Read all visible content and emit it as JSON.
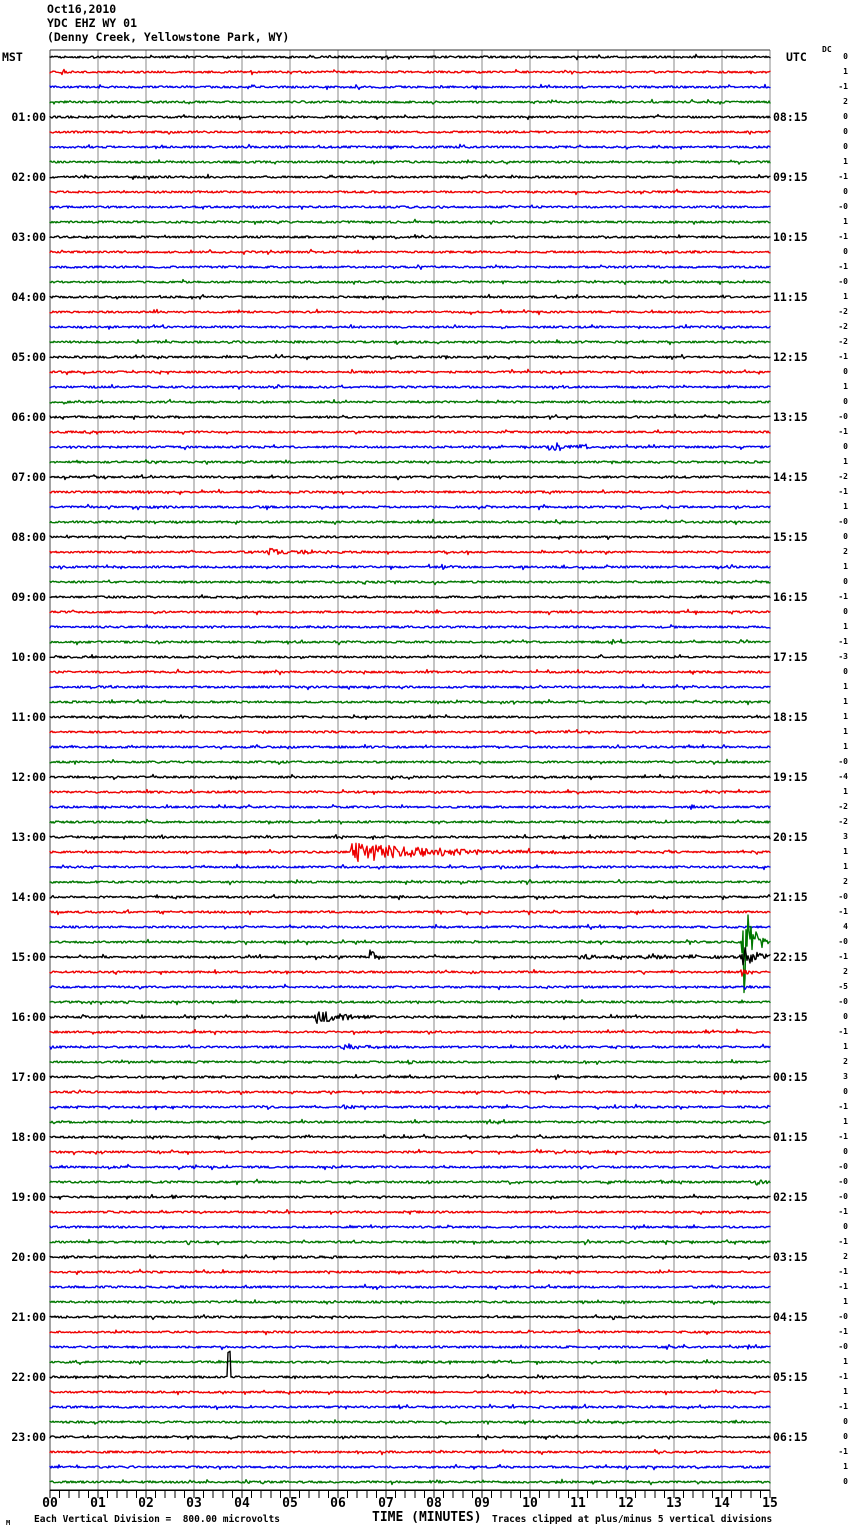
{
  "header": {
    "date": "Oct16,2010",
    "station": "YDC EHZ WY 01",
    "location": "(Denny Creek, Yellowstone Park, WY)"
  },
  "axis_headers": {
    "left": "MST",
    "right": "UTC",
    "dc": "DC"
  },
  "x_axis": {
    "label": "TIME (MINUTES)",
    "tick_labels": [
      "00",
      "01",
      "02",
      "03",
      "04",
      "05",
      "06",
      "07",
      "08",
      "09",
      "10",
      "11",
      "12",
      "13",
      "14",
      "15"
    ]
  },
  "footer": {
    "left_note": "Each Vertical Division =  800.00 microvolts",
    "right_note": "Traces clipped at plus/minus 5 vertical divisions",
    "corner_mark": "M"
  },
  "chart_data": {
    "type": "line",
    "subtype": "helicorder-seismogram",
    "title": "Oct16,2010 YDC EHZ WY 01 (Denny Creek, Yellowstone Park, WY)",
    "x_range_minutes": [
      0,
      15
    ],
    "minutes_per_row": 15,
    "rows_count": 96,
    "clip_divisions": 5,
    "microvolts_per_division": 800.0,
    "trace_color_cycle": [
      "#000000",
      "#ee0000",
      "#0000ee",
      "#007700"
    ],
    "grid_color": "#8a8a8a",
    "label_rows_start": 4,
    "label_rows_step": 4,
    "mst_labels": [
      "01:00",
      "02:00",
      "03:00",
      "04:00",
      "05:00",
      "06:00",
      "07:00",
      "08:00",
      "09:00",
      "10:00",
      "11:00",
      "12:00",
      "13:00",
      "14:00",
      "15:00",
      "16:00",
      "17:00",
      "18:00",
      "19:00",
      "20:00",
      "21:00",
      "22:00",
      "23:00"
    ],
    "utc_labels": [
      "08:15",
      "09:15",
      "10:15",
      "11:15",
      "12:15",
      "13:15",
      "14:15",
      "15:15",
      "16:15",
      "17:15",
      "18:15",
      "19:15",
      "20:15",
      "21:15",
      "22:15",
      "23:15",
      "00:15",
      "01:15",
      "02:15",
      "03:15",
      "04:15",
      "05:15",
      "06:15"
    ],
    "dc_offsets": [
      "0",
      "1",
      "-1",
      "2",
      "0",
      "0",
      "0",
      "1",
      "-1",
      "0",
      "-0",
      "1",
      "-1",
      "0",
      "-1",
      "-0",
      "1",
      "-2",
      "-2",
      "-2",
      "-1",
      "0",
      "1",
      "0",
      "-0",
      "-1",
      "0",
      "1",
      "-2",
      "-1",
      "1",
      "-0",
      "0",
      "2",
      "1",
      "0",
      "-1",
      "0",
      "1",
      "-1",
      "-3",
      "0",
      "1",
      "1",
      "1",
      "1",
      "1",
      "-0",
      "-4",
      "1",
      "-2",
      "-2",
      "3",
      "1",
      "1",
      "2",
      "-0",
      "-1",
      "4",
      "-0",
      "-1",
      "2",
      "-5",
      "-0",
      "0",
      "-1",
      "1",
      "2",
      "3",
      "0",
      "-1",
      "1",
      "-1",
      "0",
      "-0",
      "-0",
      "-0",
      "-1",
      "0",
      "-1",
      "2",
      "-1",
      "-1",
      "1",
      "-0",
      "-1",
      "-0",
      "1",
      "-1",
      "1",
      "-1",
      "0",
      "0",
      "-1",
      "1",
      "0"
    ],
    "events": [
      {
        "row": 26,
        "x": 10.4,
        "amp": 4,
        "dur": 2.0,
        "shape": "burst"
      },
      {
        "row": 33,
        "x": 4.55,
        "amp": 5,
        "dur": 1.8,
        "shape": "burst"
      },
      {
        "row": 34,
        "x": 8.15,
        "amp": 2.5,
        "dur": 0.3,
        "shape": "burst"
      },
      {
        "row": 34,
        "x": 13.9,
        "amp": 2.5,
        "dur": 0.35,
        "shape": "burst"
      },
      {
        "row": 36,
        "x": 10.6,
        "amp": 1.5,
        "dur": 0.2,
        "shape": "burst"
      },
      {
        "row": 39,
        "x": 2.8,
        "amp": 1.5,
        "dur": 0.2,
        "shape": "burst"
      },
      {
        "row": 50,
        "x": 6.35,
        "amp": 2,
        "dur": 0.3,
        "shape": "burst"
      },
      {
        "row": 52,
        "x": 10.7,
        "amp": 2,
        "dur": 0.2,
        "shape": "burst"
      },
      {
        "row": 53,
        "x": 6.3,
        "amp": 10,
        "dur": 4.0,
        "shape": "burst"
      },
      {
        "row": 59,
        "x": 14.45,
        "amp": 55,
        "dur": 0.3,
        "shape": "burst"
      },
      {
        "row": 59,
        "x": 14.55,
        "amp": 3.5,
        "dur": 0.5,
        "shape": "tremor"
      },
      {
        "row": 60,
        "x": 6.67,
        "amp": 14,
        "dur": 0.1,
        "shape": "spike"
      },
      {
        "row": 60,
        "x": 11.0,
        "amp": 2.2,
        "dur": 3.2,
        "shape": "tremor"
      },
      {
        "row": 60,
        "x": 14.42,
        "amp": 10,
        "dur": 0.35,
        "shape": "spike"
      },
      {
        "row": 61,
        "x": 14.42,
        "amp": 5,
        "dur": 0.1,
        "shape": "spike"
      },
      {
        "row": 64,
        "x": 5.55,
        "amp": 7,
        "dur": 1.5,
        "shape": "burst"
      },
      {
        "row": 66,
        "x": 6.1,
        "amp": 4,
        "dur": 1.1,
        "shape": "burst"
      },
      {
        "row": 67,
        "x": 7.45,
        "amp": 2.5,
        "dur": 0.3,
        "shape": "burst"
      },
      {
        "row": 70,
        "x": 6.1,
        "amp": 2,
        "dur": 1.1,
        "shape": "burst"
      },
      {
        "row": 75,
        "x": 12.7,
        "amp": 3,
        "dur": 0.5,
        "shape": "burst"
      },
      {
        "row": 75,
        "x": 14.7,
        "amp": 3,
        "dur": 0.4,
        "shape": "burst"
      },
      {
        "row": 76,
        "x": 2.5,
        "amp": 2,
        "dur": 0.5,
        "shape": "burst"
      },
      {
        "row": 88,
        "x": 3.69,
        "amp": 25,
        "dur": 0.06,
        "shape": "pulse-up"
      }
    ]
  }
}
